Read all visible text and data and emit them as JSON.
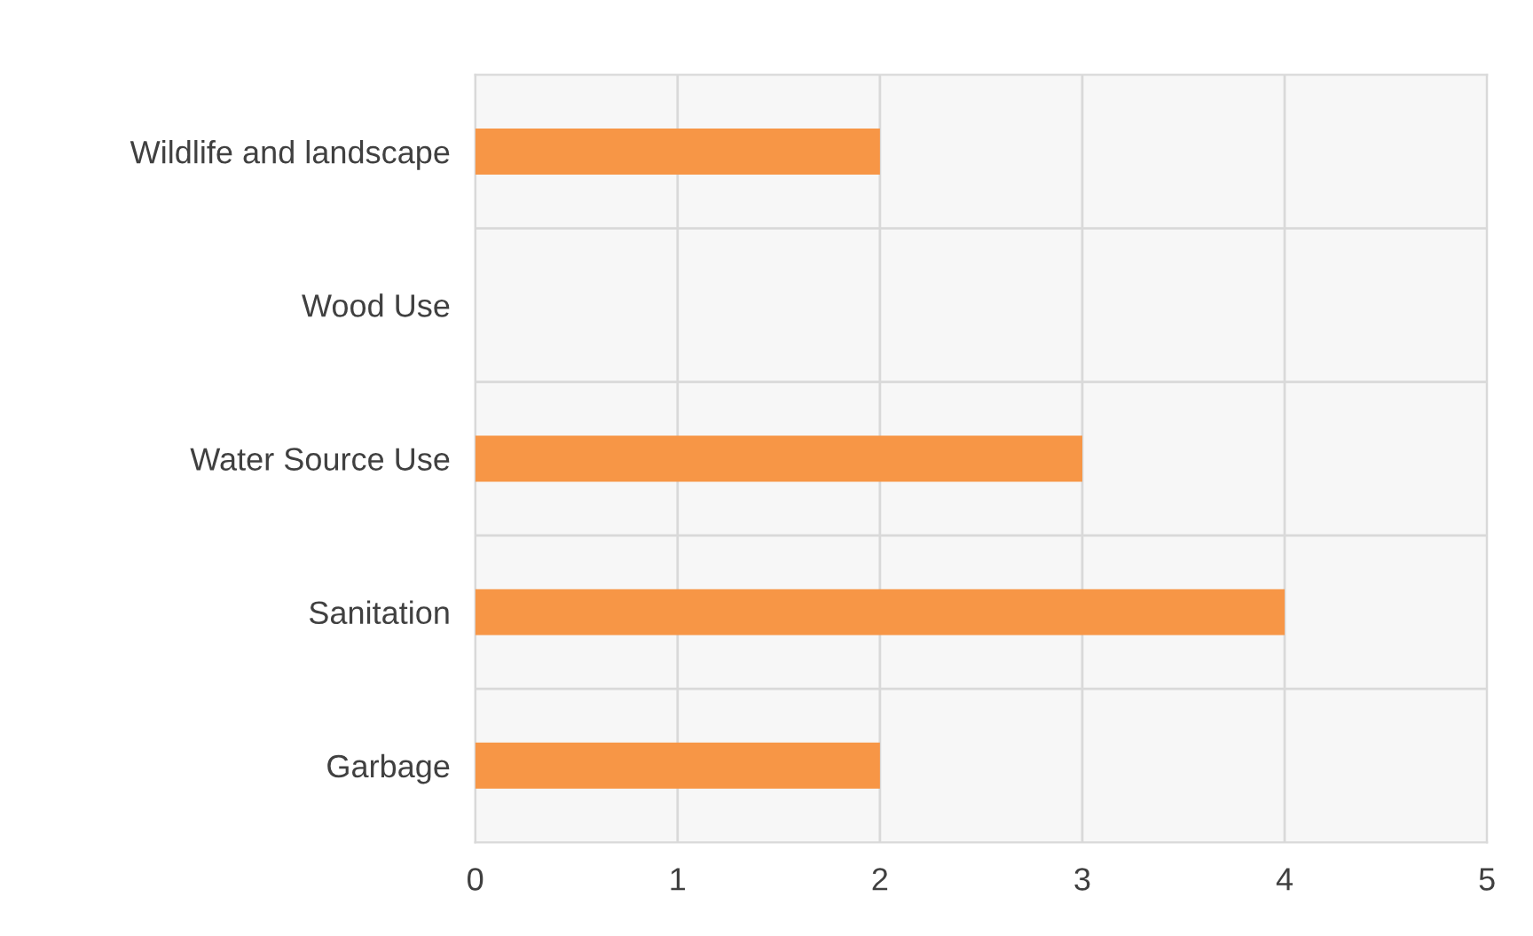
{
  "chart_data": {
    "type": "bar",
    "orientation": "horizontal",
    "categories": [
      "Wildlife and landscape",
      "Wood Use",
      "Water Source Use",
      "Sanitation",
      "Garbage"
    ],
    "values": [
      2,
      0,
      3,
      4,
      2
    ],
    "color": "#f79646",
    "xlim": [
      0,
      5
    ],
    "xticks": [
      0,
      1,
      2,
      3,
      4,
      5
    ],
    "grid": true,
    "legend": false
  }
}
